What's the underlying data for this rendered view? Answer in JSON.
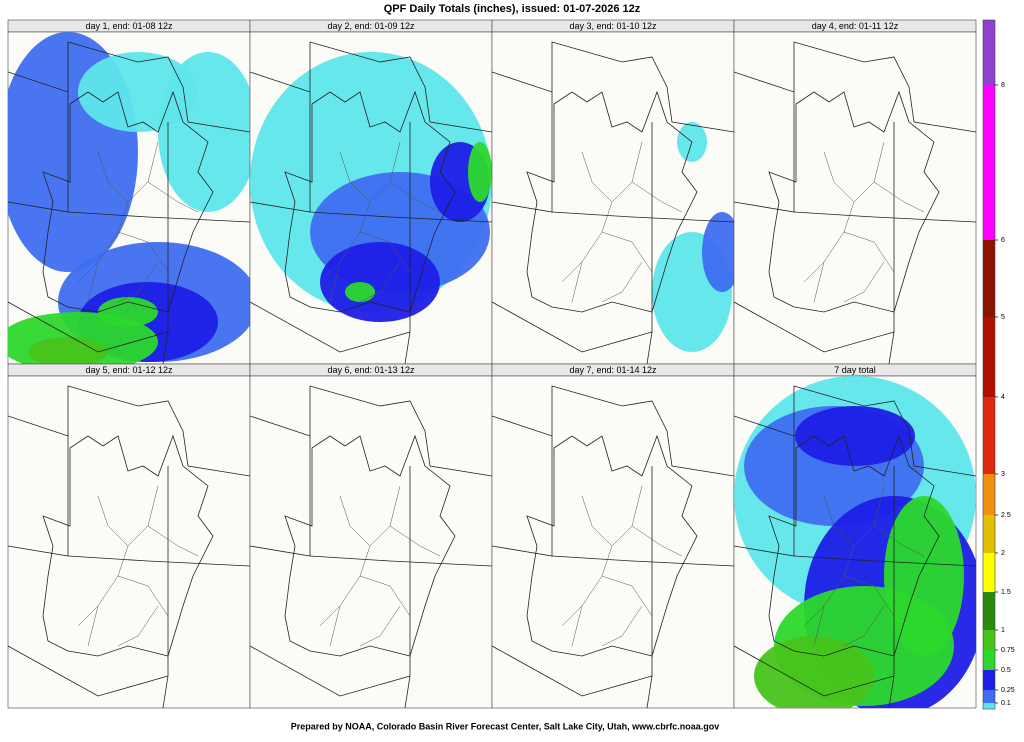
{
  "header": {
    "title": "QPF Daily Totals (inches),  issued: 01-07-2026 12z"
  },
  "panels": [
    {
      "label": "day 1, end: 01-08 12z"
    },
    {
      "label": "day 2, end: 01-09 12z"
    },
    {
      "label": "day 3, end: 01-10 12z"
    },
    {
      "label": "day 4, end: 01-11 12z"
    },
    {
      "label": "day 5, end: 01-12 12z"
    },
    {
      "label": "day 6, end: 01-13 12z"
    },
    {
      "label": "day 7, end: 01-14 12z"
    },
    {
      "label": "7 day total"
    }
  ],
  "legend": {
    "levels": [
      0.1,
      0.25,
      0.5,
      0.75,
      1,
      1.5,
      2,
      2.5,
      3,
      4,
      5,
      6,
      8
    ],
    "colors": [
      "#5ee6ea",
      "#3f6ef0",
      "#1e1ee6",
      "#2cd82c",
      "#47c41a",
      "#2a8a10",
      "#ffff00",
      "#e0c000",
      "#f09010",
      "#e02810",
      "#b01000",
      "#8a1400",
      "#ff00ff",
      "#9040d0"
    ]
  },
  "footer": {
    "text": "Prepared by NOAA, Colorado Basin River Forecast Center, Salt Lake City, Utah, www.cbrfc.noaa.gov"
  }
}
